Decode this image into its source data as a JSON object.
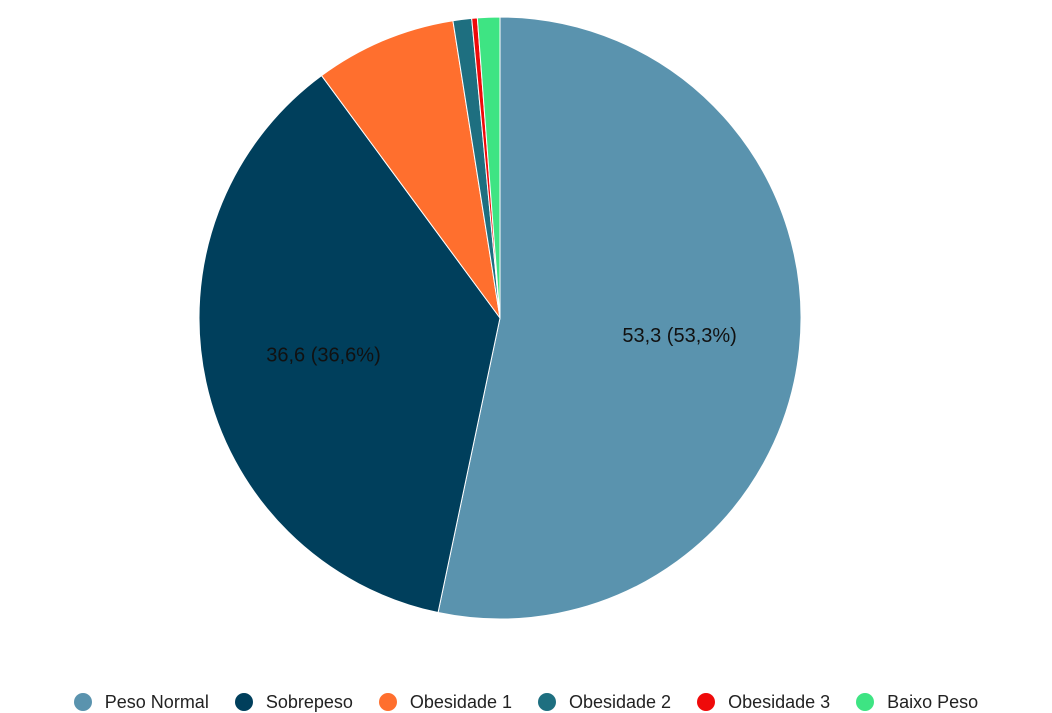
{
  "chart_data": {
    "type": "pie",
    "title": "",
    "categories": [
      "Peso Normal",
      "Sobrepeso",
      "Obesidade 1",
      "Obesidade 2",
      "Obesidade 3",
      "Baixo Peso"
    ],
    "values": [
      53.3,
      36.6,
      7.6,
      1.0,
      0.3,
      1.2
    ],
    "colors": [
      "#5a93ae",
      "#003f5c",
      "#ff6f2e",
      "#1e6f80",
      "#ef0a0a",
      "#3ee483"
    ],
    "data_labels": [
      "53,3 (53,3%)",
      "36,6 (36,6%)",
      "",
      "",
      "",
      ""
    ],
    "legend_position": "bottom",
    "start_angle_deg": 0,
    "direction": "clockwise"
  }
}
